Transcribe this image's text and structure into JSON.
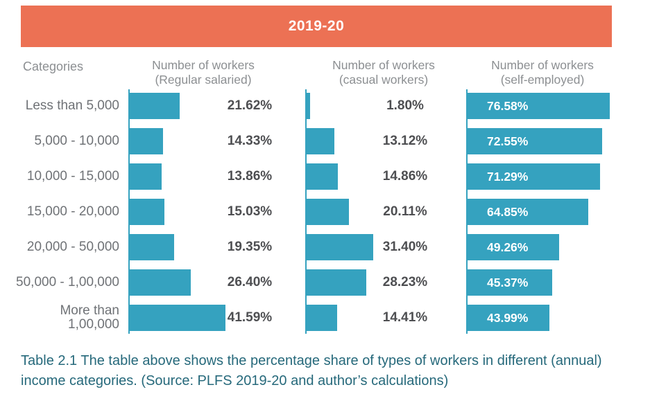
{
  "banner": {
    "title": "2019-20"
  },
  "table_header": {
    "categories": "Categories",
    "columns": [
      {
        "line1": "Number of workers",
        "line2": "(Regular salaried)"
      },
      {
        "line1": "Number of workers",
        "line2": "(casual workers)"
      },
      {
        "line1": "Number of workers",
        "line2": "(self-employed)"
      }
    ]
  },
  "chart_data": {
    "type": "bar",
    "orientation": "horizontal",
    "title": "2019-20",
    "categories": [
      "Less than 5,000",
      "5,000 - 10,000",
      "10,000 - 15,000",
      "15,000 - 20,000",
      "20,000 - 50,000",
      "50,000 - 1,00,000",
      "More than 1,00,000"
    ],
    "category_labels_display": [
      "Less than 5,000",
      "5,000 - 10,000",
      "10,000 - 15,000",
      "15,000 - 20,000",
      "20,000 - 50,000",
      "50,000 - 1,00,000",
      "More than\n1,00,000"
    ],
    "series": [
      {
        "name": "Number of workers (Regular salaried)",
        "values": [
          21.62,
          14.33,
          13.86,
          15.03,
          19.35,
          26.4,
          41.59
        ]
      },
      {
        "name": "Number of workers (casual workers)",
        "values": [
          1.8,
          13.12,
          14.86,
          20.11,
          31.4,
          28.23,
          14.41
        ]
      },
      {
        "name": "Number of workers (self-employed)",
        "values": [
          76.58,
          72.55,
          71.29,
          64.85,
          49.26,
          45.37,
          43.99
        ]
      }
    ],
    "value_suffix": "%",
    "value_label_position": [
      "right-of-bar",
      "right-of-bar",
      "inside-bar"
    ],
    "grid": false,
    "legend": false
  },
  "caption": {
    "text": "Table 2.1 The table above shows the percentage share of types of workers in different (annual) income categories. (Source: PLFS 2019-20 and author’s calculations)"
  },
  "colors": {
    "bar": "#35A2BF",
    "banner_background": "#EC7154",
    "banner_text": "#FFFFFF",
    "caption_text": "#26697B",
    "category_text": "#6F7276",
    "value_text": "#4E4F52",
    "header_text": "#8C8F92",
    "value_text_on_bar": "#FFFFFF"
  }
}
